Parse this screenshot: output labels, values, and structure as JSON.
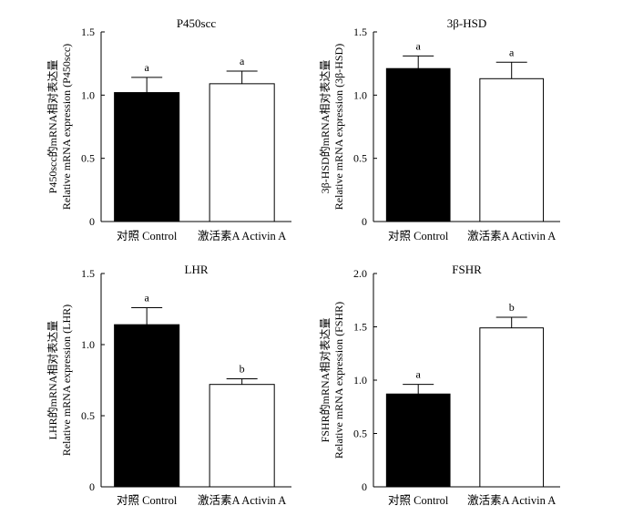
{
  "chart_data": [
    {
      "type": "bar",
      "title": "P450scc",
      "ylabel_cn": "P450scc的mRNA相对表达量",
      "ylabel_en": "Relative mRNA expression (P450scc)",
      "categories": [
        "对照 Control",
        "激活素A Activin A"
      ],
      "values": [
        1.02,
        1.09
      ],
      "errors": [
        0.12,
        0.1
      ],
      "letters": [
        "a",
        "a"
      ],
      "fills": [
        "#000000",
        "#ffffff"
      ],
      "ylim": [
        0,
        1.5
      ],
      "yticks": [
        "0",
        "0.5",
        "1.0",
        "1.5"
      ],
      "yticks_values": [
        0,
        0.5,
        1.0,
        1.5
      ]
    },
    {
      "type": "bar",
      "title": "3β-HSD",
      "ylabel_cn": "3β-HSD的mRNA相对表达量",
      "ylabel_en": "Relative mRNA expression (3β-HSD)",
      "categories": [
        "对照 Control",
        "激活素A Activin A"
      ],
      "values": [
        1.21,
        1.13
      ],
      "errors": [
        0.1,
        0.13
      ],
      "letters": [
        "a",
        "a"
      ],
      "fills": [
        "#000000",
        "#ffffff"
      ],
      "ylim": [
        0,
        1.5
      ],
      "yticks": [
        "0",
        "0.5",
        "1.0",
        "1.5"
      ],
      "yticks_values": [
        0,
        0.5,
        1.0,
        1.5
      ]
    },
    {
      "type": "bar",
      "title": "LHR",
      "ylabel_cn": "LHR的mRNA相对表达量",
      "ylabel_en": "Relative mRNA expression (LHR)",
      "categories": [
        "对照 Control",
        "激活素A Activin A"
      ],
      "values": [
        1.14,
        0.72
      ],
      "errors": [
        0.12,
        0.04
      ],
      "letters": [
        "a",
        "b"
      ],
      "fills": [
        "#000000",
        "#ffffff"
      ],
      "ylim": [
        0,
        1.5
      ],
      "yticks": [
        "0",
        "0.5",
        "1.0",
        "1.5"
      ],
      "yticks_values": [
        0,
        0.5,
        1.0,
        1.5
      ]
    },
    {
      "type": "bar",
      "title": "FSHR",
      "ylabel_cn": "FSHR的mRNA相对表达量",
      "ylabel_en": "Relative mRNA expression (FSHR)",
      "categories": [
        "对照 Control",
        "激活素A Activin A"
      ],
      "values": [
        0.87,
        1.49
      ],
      "errors": [
        0.09,
        0.1
      ],
      "letters": [
        "a",
        "b"
      ],
      "fills": [
        "#000000",
        "#ffffff"
      ],
      "ylim": [
        0,
        2.0
      ],
      "yticks": [
        "0",
        "0.5",
        "1.0",
        "1.5",
        "2.0"
      ],
      "yticks_values": [
        0,
        0.5,
        1.0,
        1.5,
        2.0
      ]
    }
  ]
}
